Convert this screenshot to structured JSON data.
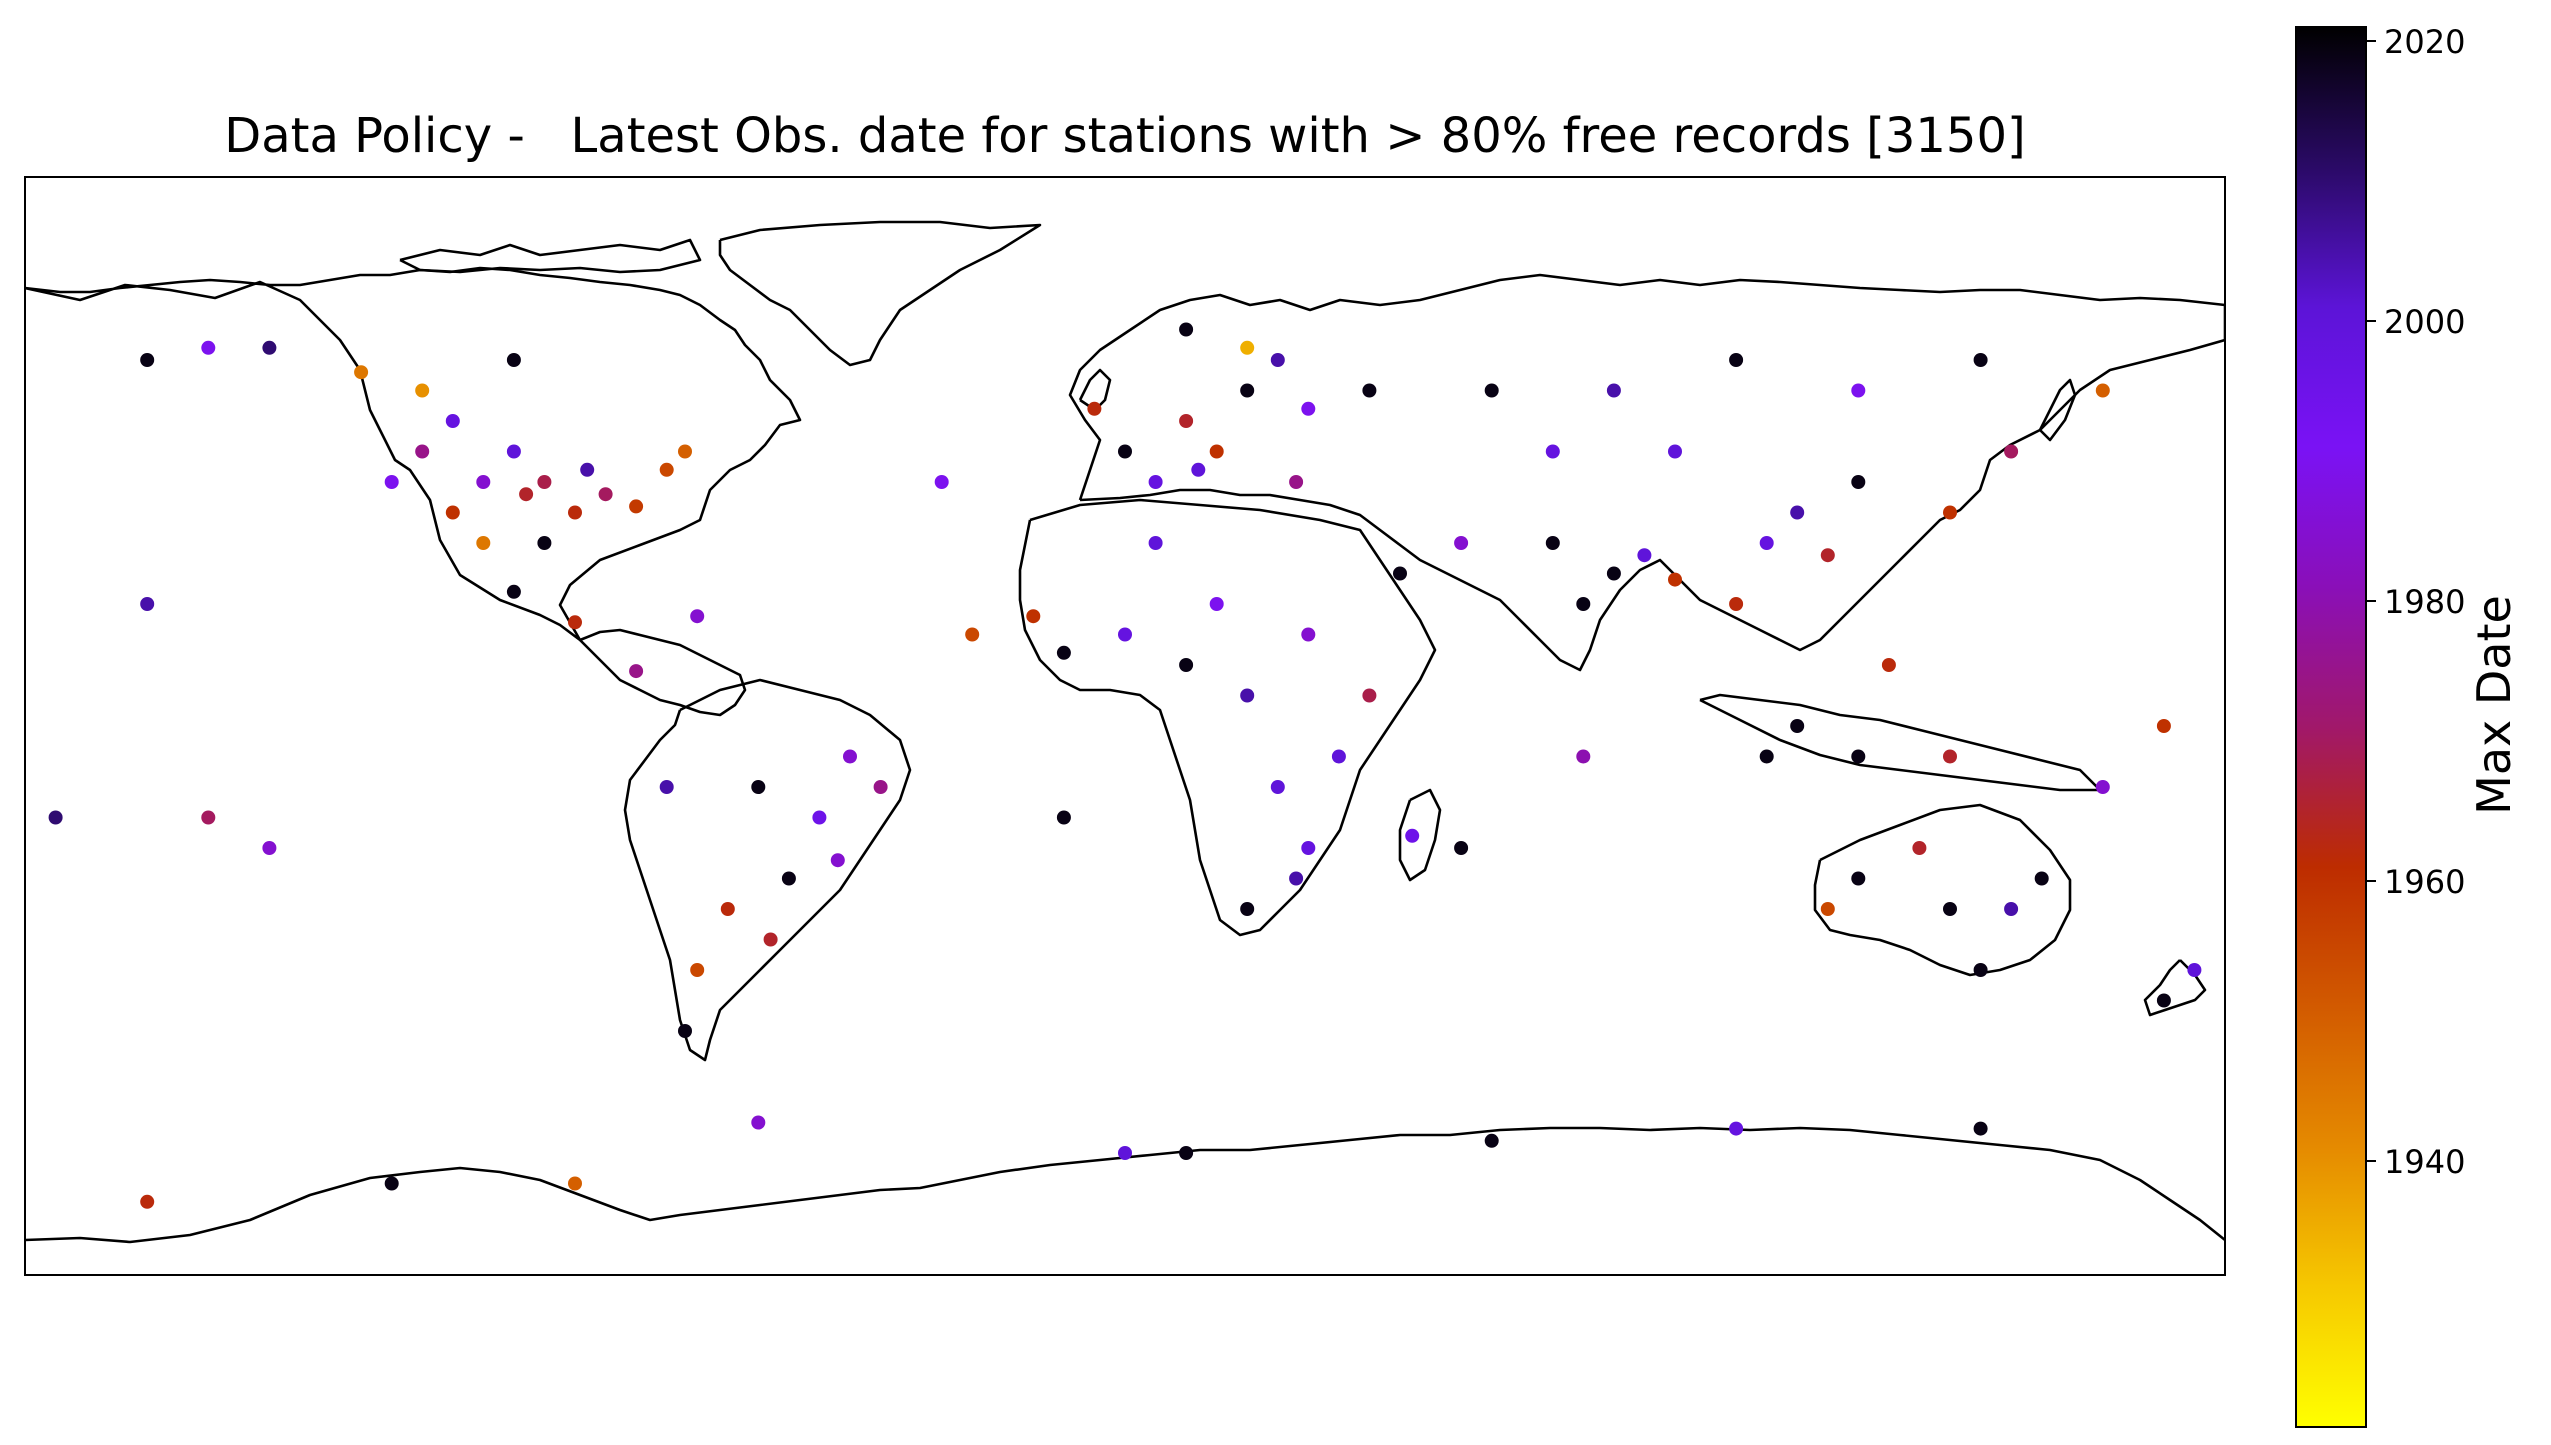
{
  "title": "Data Policy -   Latest Obs. date for stations with > 80% free records [3150]",
  "colorbar": {
    "label": "Max Date",
    "range": [
      1921,
      2021
    ],
    "ticks": [
      "1940",
      "1960",
      "1980",
      "2000",
      "2020"
    ],
    "tick_values": [
      1940,
      1960,
      1980,
      2000,
      2020
    ],
    "colormap": "gnuplot2_r",
    "colors": [
      "#ffff00",
      "#f6c800",
      "#e58a00",
      "#d25a00",
      "#bd2c00",
      "#a1186a",
      "#8a0fb8",
      "#7a12f5",
      "#5c14d7",
      "#2a0a66",
      "#000000"
    ]
  },
  "map": {
    "projection": "plate carree",
    "coastlines": true,
    "station_count": 3150
  },
  "chart_data": {
    "type": "scatter",
    "title": "Data Policy -   Latest Obs. date for stations with > 80% free records [3150]",
    "xlabel": "",
    "ylabel": "",
    "xlim": [
      -180,
      180
    ],
    "ylim": [
      -90,
      90
    ],
    "color_label": "Max Date",
    "color_range": [
      1921,
      2021
    ],
    "series": [
      {
        "points_note_fields": [
          "lon",
          "lat",
          "max_date"
        ],
        "points": [
          [
            -98,
            38,
            1965
          ],
          [
            -95,
            40,
            1968
          ],
          [
            -90,
            35,
            1962
          ],
          [
            -85,
            38,
            1970
          ],
          [
            -80,
            36,
            1958
          ],
          [
            -105,
            40,
            1985
          ],
          [
            -110,
            35,
            1960
          ],
          [
            -115,
            45,
            1975
          ],
          [
            -120,
            40,
            1990
          ],
          [
            -100,
            45,
            2000
          ],
          [
            -88,
            42,
            2005
          ],
          [
            -75,
            42,
            1955
          ],
          [
            -72,
            45,
            1950
          ],
          [
            -95,
            30,
            2019
          ],
          [
            -105,
            30,
            1945
          ],
          [
            -115,
            55,
            1940
          ],
          [
            -125,
            58,
            1945
          ],
          [
            -100,
            60,
            2019
          ],
          [
            -140,
            62,
            2010
          ],
          [
            -150,
            62,
            1990
          ],
          [
            -160,
            60,
            2019
          ],
          [
            -110,
            50,
            1998
          ],
          [
            -100,
            22,
            2019
          ],
          [
            -90,
            17,
            1962
          ],
          [
            -80,
            9,
            1975
          ],
          [
            -70,
            18,
            1985
          ],
          [
            -60,
            -10,
            2019
          ],
          [
            -50,
            -15,
            1995
          ],
          [
            -45,
            -5,
            1985
          ],
          [
            -65,
            -30,
            1962
          ],
          [
            -70,
            -40,
            1955
          ],
          [
            -55,
            -25,
            2019
          ],
          [
            -40,
            -10,
            1975
          ],
          [
            -75,
            -10,
            2005
          ],
          [
            -58,
            -35,
            1965
          ],
          [
            -72,
            -50,
            2019
          ],
          [
            -47,
            -22,
            1985
          ],
          [
            0,
            45,
            2019
          ],
          [
            10,
            50,
            1965
          ],
          [
            20,
            55,
            2019
          ],
          [
            30,
            52,
            1990
          ],
          [
            5,
            40,
            1998
          ],
          [
            15,
            45,
            1960
          ],
          [
            25,
            60,
            2005
          ],
          [
            40,
            55,
            2019
          ],
          [
            -5,
            52,
            1962
          ],
          [
            12,
            42,
            2000
          ],
          [
            10,
            65,
            2019
          ],
          [
            28,
            40,
            1975
          ],
          [
            20,
            62,
            1935
          ],
          [
            0,
            15,
            1998
          ],
          [
            10,
            10,
            2019
          ],
          [
            20,
            5,
            2005
          ],
          [
            30,
            15,
            1985
          ],
          [
            25,
            -10,
            2000
          ],
          [
            30,
            -20,
            1998
          ],
          [
            20,
            -30,
            2019
          ],
          [
            35,
            -5,
            2000
          ],
          [
            40,
            5,
            1968
          ],
          [
            -10,
            12,
            2019
          ],
          [
            5,
            30,
            2000
          ],
          [
            15,
            20,
            1990
          ],
          [
            47,
            -18,
            1995
          ],
          [
            28,
            -25,
            2005
          ],
          [
            -15,
            18,
            1960
          ],
          [
            80,
            25,
            2019
          ],
          [
            75,
            20,
            2019
          ],
          [
            85,
            28,
            2000
          ],
          [
            70,
            30,
            2019
          ],
          [
            90,
            24,
            1960
          ],
          [
            105,
            30,
            1998
          ],
          [
            110,
            35,
            2005
          ],
          [
            115,
            28,
            1965
          ],
          [
            120,
            40,
            2019
          ],
          [
            100,
            20,
            1962
          ],
          [
            110,
            0,
            2019
          ],
          [
            120,
            -5,
            2019
          ],
          [
            105,
            -5,
            2019
          ],
          [
            125,
            10,
            1962
          ],
          [
            135,
            -5,
            1965
          ],
          [
            60,
            55,
            2019
          ],
          [
            80,
            55,
            2005
          ],
          [
            100,
            60,
            2019
          ],
          [
            120,
            55,
            1990
          ],
          [
            140,
            60,
            2019
          ],
          [
            70,
            45,
            1998
          ],
          [
            90,
            45,
            2000
          ],
          [
            55,
            30,
            1985
          ],
          [
            45,
            25,
            2019
          ],
          [
            135,
            35,
            1960
          ],
          [
            145,
            45,
            1970
          ],
          [
            160,
            55,
            1950
          ],
          [
            120,
            -25,
            2019
          ],
          [
            130,
            -20,
            1965
          ],
          [
            145,
            -30,
            2005
          ],
          [
            150,
            -25,
            2019
          ],
          [
            135,
            -30,
            2019
          ],
          [
            115,
            -30,
            1955
          ],
          [
            140,
            -40,
            2019
          ],
          [
            175,
            -40,
            2000
          ],
          [
            170,
            -45,
            2019
          ],
          [
            -150,
            -15,
            1970
          ],
          [
            -160,
            20,
            2005
          ],
          [
            -175,
            -15,
            2010
          ],
          [
            -140,
            -20,
            1985
          ],
          [
            170,
            0,
            1960
          ],
          [
            160,
            -10,
            1985
          ],
          [
            -30,
            40,
            1990
          ],
          [
            -25,
            15,
            1955
          ],
          [
            55,
            -20,
            2019
          ],
          [
            75,
            -5,
            1980
          ],
          [
            -10,
            -15,
            2019
          ],
          [
            10,
            -70,
            2019
          ],
          [
            60,
            -68,
            2019
          ],
          [
            100,
            -66,
            1998
          ],
          [
            140,
            -66,
            2019
          ],
          [
            -60,
            -65,
            1985
          ],
          [
            -160,
            -78,
            1962
          ],
          [
            -120,
            -75,
            2019
          ],
          [
            0,
            -70,
            2000
          ],
          [
            -90,
            -75,
            1950
          ]
        ]
      }
    ]
  }
}
